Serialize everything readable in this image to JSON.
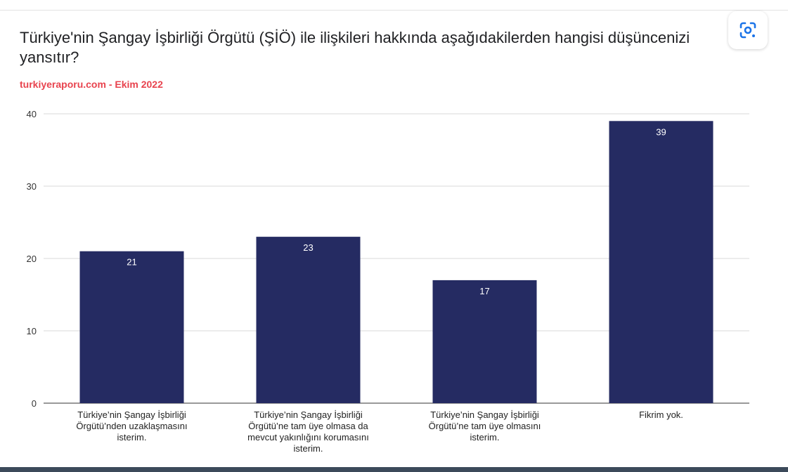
{
  "title": "Türkiye'nin Şangay İşbirliği Örgütü (ŞİÖ) ile ilişkileri hakkında aşağıdakilerden hangisi düşüncenizi yansıtır?",
  "subtitle": "turkiyeraporu.com - Ekim 2022",
  "icons": {
    "lens": "google-lens-icon"
  },
  "colors": {
    "bar": "#252b62",
    "subtitle": "#e8434e",
    "grid": "#dadada"
  },
  "chart_data": {
    "type": "bar",
    "categories": [
      [
        "Türkiye’nin Şangay İşbirliği",
        "Örgütü’nden uzaklaşmasını",
        "isterim."
      ],
      [
        "Türkiye’nin Şangay İşbirliği",
        "Örgütü’ne tam üye olmasa da",
        "mevcut yakınlığını korumasını",
        "isterim."
      ],
      [
        "Türkiye’nin Şangay İşbirliği",
        "Örgütü’ne tam üye olmasını",
        "isterim."
      ],
      [
        "Fikrim yok."
      ]
    ],
    "values": [
      21,
      23,
      17,
      39
    ],
    "data_labels": [
      "21",
      "23",
      "17",
      "39"
    ],
    "ylim": [
      0,
      40
    ],
    "yticks": [
      "0",
      "10",
      "20",
      "30",
      "40"
    ],
    "grid": true,
    "legend": "none"
  }
}
